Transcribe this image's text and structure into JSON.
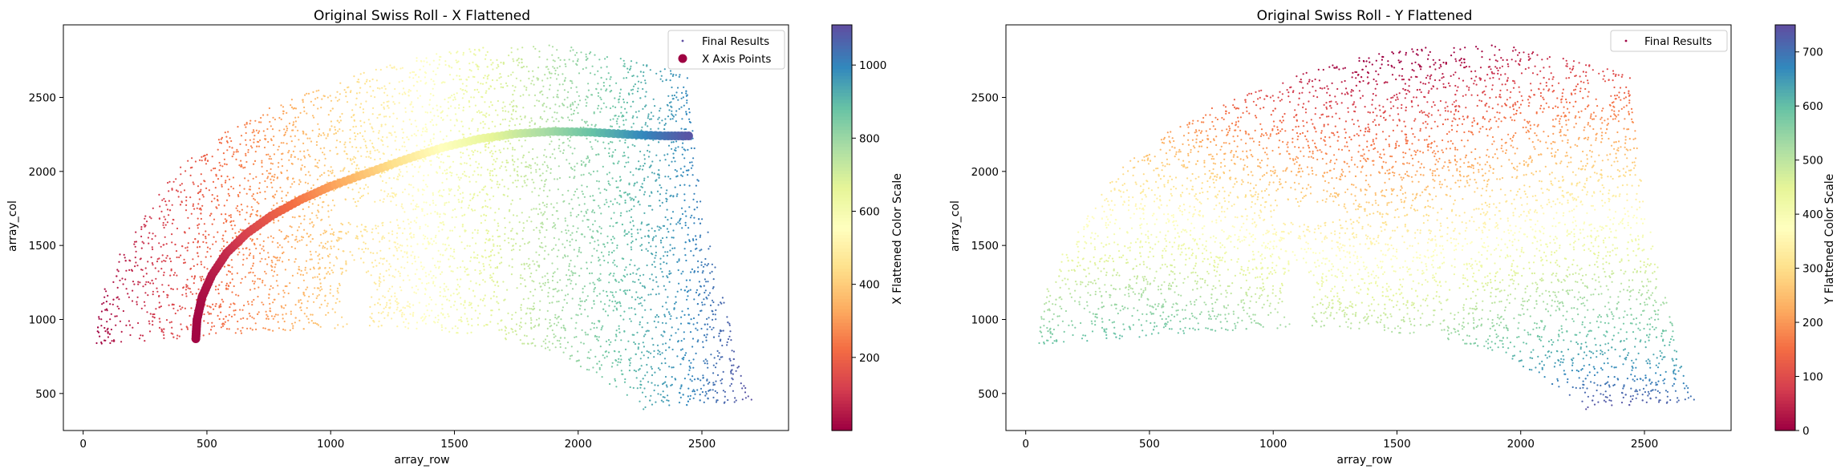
{
  "chart_data": [
    {
      "type": "scatter",
      "title": "Original Swiss Roll - X Flattened",
      "xlabel": "array_row",
      "ylabel": "array_col",
      "xlim": [
        -80,
        2850
      ],
      "ylim": [
        250,
        2990
      ],
      "x_ticks": [
        0,
        500,
        1000,
        1500,
        2000,
        2500
      ],
      "y_ticks": [
        500,
        1000,
        1500,
        2000,
        2500
      ],
      "legend": {
        "position": "top-right",
        "entries": [
          "Final Results",
          "X Axis Points"
        ]
      },
      "colorbar": {
        "label": "X Flattened Color Scale",
        "range": [
          0,
          1110
        ],
        "ticks": [
          200,
          400,
          600,
          800,
          1000
        ],
        "colormap": [
          "#9e0142",
          "#d53e4f",
          "#f46d43",
          "#fdae61",
          "#fee08b",
          "#ffffbf",
          "#e6f598",
          "#abdda4",
          "#66c2a5",
          "#3288bd",
          "#5e4fa2"
        ]
      },
      "series": [
        {
          "name": "Final Results",
          "marker": "small dots colored by X flattened value",
          "region_outline": [
            [
              40,
              830
            ],
            [
              60,
              1000
            ],
            [
              80,
              1200
            ],
            [
              150,
              1450
            ],
            [
              260,
              1750
            ],
            [
              400,
              2050
            ],
            [
              560,
              2250
            ],
            [
              750,
              2430
            ],
            [
              950,
              2560
            ],
            [
              1150,
              2680
            ],
            [
              1400,
              2790
            ],
            [
              1600,
              2840
            ],
            [
              1800,
              2860
            ],
            [
              1950,
              2850
            ],
            [
              2100,
              2800
            ],
            [
              2250,
              2730
            ],
            [
              2440,
              2660
            ],
            [
              2450,
              2500
            ],
            [
              2470,
              2200
            ],
            [
              2500,
              1800
            ],
            [
              2560,
              1300
            ],
            [
              2640,
              800
            ],
            [
              2710,
              430
            ],
            [
              2500,
              420
            ],
            [
              2260,
              390
            ],
            [
              2180,
              500
            ],
            [
              2050,
              650
            ],
            [
              1900,
              760
            ],
            [
              1750,
              850
            ],
            [
              1600,
              900
            ],
            [
              1400,
              920
            ],
            [
              1200,
              950
            ],
            [
              1000,
              940
            ],
            [
              800,
              920
            ],
            [
              600,
              900
            ],
            [
              400,
              870
            ],
            [
              200,
              850
            ]
          ]
        },
        {
          "name": "X Axis Points",
          "marker": "large dots tracing a curved band",
          "points": [
            [
              455,
              870
            ],
            [
              460,
              1000
            ],
            [
              480,
              1150
            ],
            [
              520,
              1300
            ],
            [
              580,
              1450
            ],
            [
              660,
              1580
            ],
            [
              760,
              1700
            ],
            [
              880,
              1810
            ],
            [
              1000,
              1900
            ],
            [
              1150,
              1990
            ],
            [
              1300,
              2080
            ],
            [
              1450,
              2160
            ],
            [
              1600,
              2220
            ],
            [
              1750,
              2255
            ],
            [
              1900,
              2270
            ],
            [
              2050,
              2265
            ],
            [
              2200,
              2250
            ],
            [
              2350,
              2240
            ],
            [
              2460,
              2240
            ]
          ]
        }
      ]
    },
    {
      "type": "scatter",
      "title": "Original Swiss Roll - Y Flattened",
      "xlabel": "array_row",
      "ylabel": "array_col",
      "xlim": [
        -80,
        2850
      ],
      "ylim": [
        250,
        2990
      ],
      "x_ticks": [
        0,
        500,
        1000,
        1500,
        2000,
        2500
      ],
      "y_ticks": [
        500,
        1000,
        1500,
        2000,
        2500
      ],
      "legend": {
        "position": "top-right",
        "entries": [
          "Final Results"
        ]
      },
      "colorbar": {
        "label": "Y Flattened Color Scale",
        "range": [
          0,
          750
        ],
        "ticks": [
          0,
          100,
          200,
          300,
          400,
          500,
          600,
          700
        ],
        "colormap": [
          "#9e0142",
          "#d53e4f",
          "#f46d43",
          "#fdae61",
          "#fee08b",
          "#ffffbf",
          "#e6f598",
          "#abdda4",
          "#66c2a5",
          "#3288bd",
          "#5e4fa2"
        ]
      },
      "series": [
        {
          "name": "Final Results",
          "marker": "small dots colored by Y flattened value"
        }
      ]
    }
  ]
}
